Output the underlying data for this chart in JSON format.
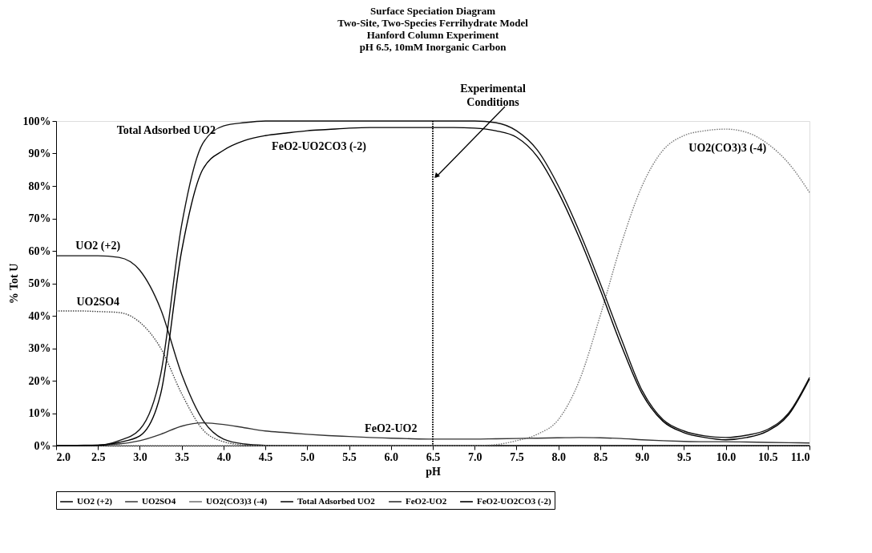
{
  "chart_data": {
    "type": "line",
    "title": "Surface Speciation Diagram",
    "subtitle": "Two-Site, Two-Species Ferrihydrate Model\nHanford Column Experiment\npH 6.5, 10mM Inorganic Carbon",
    "xlabel": "pH",
    "ylabel": "% Tot U",
    "x": [
      2.0,
      2.25,
      2.5,
      2.75,
      3.0,
      3.25,
      3.5,
      3.75,
      4.0,
      4.25,
      4.5,
      4.75,
      5.0,
      5.25,
      5.5,
      5.75,
      6.0,
      6.25,
      6.5,
      6.75,
      7.0,
      7.25,
      7.5,
      7.75,
      8.0,
      8.25,
      8.5,
      8.75,
      9.0,
      9.25,
      9.5,
      9.75,
      10.0,
      10.25,
      10.5,
      10.75,
      11.0
    ],
    "series": [
      {
        "name": "UO2 (+2)",
        "color": "#111111",
        "line_style": "solid",
        "values": [
          58.5,
          58.5,
          58.5,
          58,
          54,
          42,
          22,
          8,
          2,
          0.5,
          0.1,
          0,
          0,
          0,
          0,
          0,
          0,
          0,
          0,
          0,
          0,
          0,
          0,
          0,
          0,
          0,
          0,
          0,
          0,
          0,
          0,
          0,
          0,
          0,
          0,
          0,
          0
        ]
      },
      {
        "name": "UO2SO4",
        "color": "#444444",
        "line_style": "dotted",
        "values": [
          41.5,
          41.5,
          41.3,
          41,
          38,
          30,
          16,
          5,
          1.2,
          0.2,
          0,
          0,
          0,
          0,
          0,
          0,
          0,
          0,
          0,
          0,
          0,
          0,
          0,
          0,
          0,
          0,
          0,
          0,
          0,
          0,
          0,
          0,
          0,
          0,
          0,
          0,
          0
        ]
      },
      {
        "name": "UO2(CO3)3 (-4)",
        "color": "#777777",
        "line_style": "dotted",
        "values": [
          0,
          0,
          0,
          0,
          0,
          0,
          0,
          0,
          0,
          0,
          0,
          0,
          0,
          0,
          0,
          0,
          0,
          0,
          0,
          0,
          0,
          0.3,
          1.5,
          3.5,
          8,
          20,
          40,
          62,
          80,
          91,
          95.5,
          97,
          97.5,
          96.5,
          93,
          87,
          78
        ]
      },
      {
        "name": "Total Adsorbed UO2",
        "color": "#111111",
        "line_style": "solid",
        "values": [
          0,
          0,
          0.1,
          1.5,
          5,
          22,
          68,
          93,
          98.5,
          99.5,
          100,
          100,
          100,
          100,
          100,
          100,
          100,
          100,
          100,
          100,
          100,
          99.5,
          97,
          91,
          80,
          66,
          50,
          33,
          17,
          8,
          4.5,
          3,
          2.5,
          3.2,
          5,
          10,
          21
        ]
      },
      {
        "name": "FeO2-UO2",
        "color": "#333333",
        "line_style": "solid",
        "values": [
          0,
          0.1,
          0.2,
          0.5,
          1.5,
          3.5,
          6,
          7,
          6.5,
          5.5,
          4.5,
          4,
          3.5,
          3.1,
          2.8,
          2.5,
          2.3,
          2.1,
          2.0,
          2.0,
          2.0,
          2.1,
          2.2,
          2.3,
          2.4,
          2.5,
          2.4,
          2.2,
          1.8,
          1.5,
          1.3,
          1.2,
          1.2,
          1.1,
          1,
          0.9,
          0.8
        ]
      },
      {
        "name": "FeO2-UO2CO3 (-2)",
        "color": "#000000",
        "line_style": "solid",
        "values": [
          0,
          0,
          0.1,
          1,
          3,
          16,
          60,
          85,
          91,
          94,
          95.5,
          96.3,
          97,
          97.4,
          97.8,
          98,
          98,
          98,
          98,
          98,
          97.8,
          97,
          95,
          89,
          78,
          64,
          48,
          31,
          16,
          7.5,
          4,
          2.5,
          1.8,
          2.5,
          4.5,
          9.5,
          20.5
        ]
      }
    ],
    "xlim": [
      2.0,
      11.0
    ],
    "xticks": [
      {
        "value": 2,
        "label": "2.0"
      },
      2.5,
      {
        "value": 3,
        "label": "3.0"
      },
      3.5,
      {
        "value": 4,
        "label": "4.0"
      },
      4.5,
      {
        "value": 5,
        "label": "5.0"
      },
      5.5,
      {
        "value": 6,
        "label": "6.0"
      },
      6.5,
      {
        "value": 7,
        "label": "7.0"
      },
      7.5,
      {
        "value": 8,
        "label": "8.0"
      },
      8.5,
      {
        "value": 9,
        "label": "9.0"
      },
      9.5,
      {
        "value": 10,
        "label": "10.0"
      },
      10.5,
      {
        "value": 11,
        "label": "11.0"
      }
    ],
    "ylim": [
      0,
      100
    ],
    "yticks": [
      {
        "value": 0,
        "label": "0%"
      },
      {
        "value": 10,
        "label": "10%"
      },
      {
        "value": 20,
        "label": "20%"
      },
      {
        "value": 30,
        "label": "30%"
      },
      {
        "value": 40,
        "label": "40%"
      },
      {
        "value": 50,
        "label": "50%"
      },
      {
        "value": 60,
        "label": "60%"
      },
      {
        "value": 70,
        "label": "70%"
      },
      {
        "value": 80,
        "label": "80%"
      },
      {
        "value": 90,
        "label": "90%"
      },
      {
        "value": 100,
        "label": "100%"
      }
    ],
    "ref_lines": [
      {
        "axis": "x",
        "value": 6.5,
        "label": "Experimental\nConditions",
        "color": "#000000",
        "line_style": "dotted"
      }
    ],
    "annotations": [
      {
        "text": "Total Adsorbed UO2",
        "x": 4.0,
        "y": 98.5
      },
      {
        "text": "FeO2-UO2CO3 (-2)",
        "x": 4.5,
        "y": 95.5
      },
      {
        "text": "UO2 (+2)",
        "x": 2.5,
        "y": 58.5
      },
      {
        "text": "UO2SO4",
        "x": 2.5,
        "y": 41.3
      },
      {
        "text": "FeO2-UO2",
        "x": 6.0,
        "y": 2.3
      },
      {
        "text": "UO2(CO3)3 (-4)",
        "x": 9.5,
        "y": 95.5
      }
    ],
    "grid": false,
    "legend": "bottom",
    "marker": "none"
  }
}
